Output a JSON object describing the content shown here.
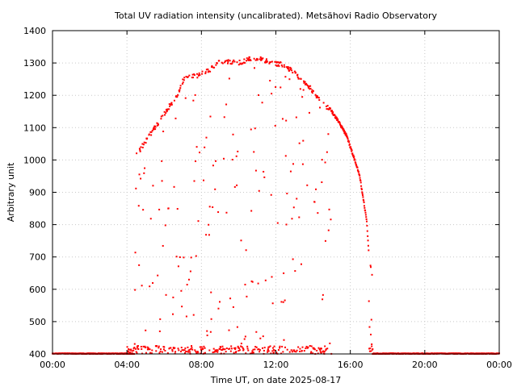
{
  "chart_data": {
    "type": "scatter",
    "title": "Total UV radiation intensity (uncalibrated). Metsähovi Radio Observatory",
    "xlabel": "Time UT, on date 2025-08-17",
    "ylabel": "Arbitrary unit",
    "xlim": [
      0,
      24
    ],
    "ylim": [
      400,
      1400
    ],
    "x_tick_values": [
      0,
      4,
      8,
      12,
      16,
      20,
      24
    ],
    "x_tick_labels": [
      "00:00",
      "04:00",
      "08:00",
      "12:00",
      "16:00",
      "20:00",
      "00:00"
    ],
    "y_ticks": [
      400,
      500,
      600,
      700,
      800,
      900,
      1000,
      1100,
      1200,
      1300,
      1400
    ],
    "grid": true,
    "color": "#ff0000",
    "marker": "dot",
    "envelope": {
      "x": [
        4.4,
        4.5,
        6.8,
        7.0,
        7.3,
        7.7,
        8.2,
        8.6,
        9.0,
        9.5,
        10.0,
        10.5,
        10.9,
        11.3,
        11.8,
        12.3,
        12.8,
        13.3,
        13.8,
        14.7,
        15.0,
        15.3,
        15.5,
        15.8,
        16.0,
        16.3,
        16.5,
        16.7,
        16.9,
        17.0,
        17.2
      ],
      "y": [
        400,
        1015,
        1210,
        1245,
        1255,
        1260,
        1270,
        1285,
        1305,
        1305,
        1300,
        1310,
        1315,
        1310,
        1300,
        1295,
        1280,
        1250,
        1225,
        1165,
        1150,
        1125,
        1105,
        1075,
        1040,
        990,
        950,
        880,
        800,
        700,
        630
      ]
    },
    "baseline_y": 400
  }
}
